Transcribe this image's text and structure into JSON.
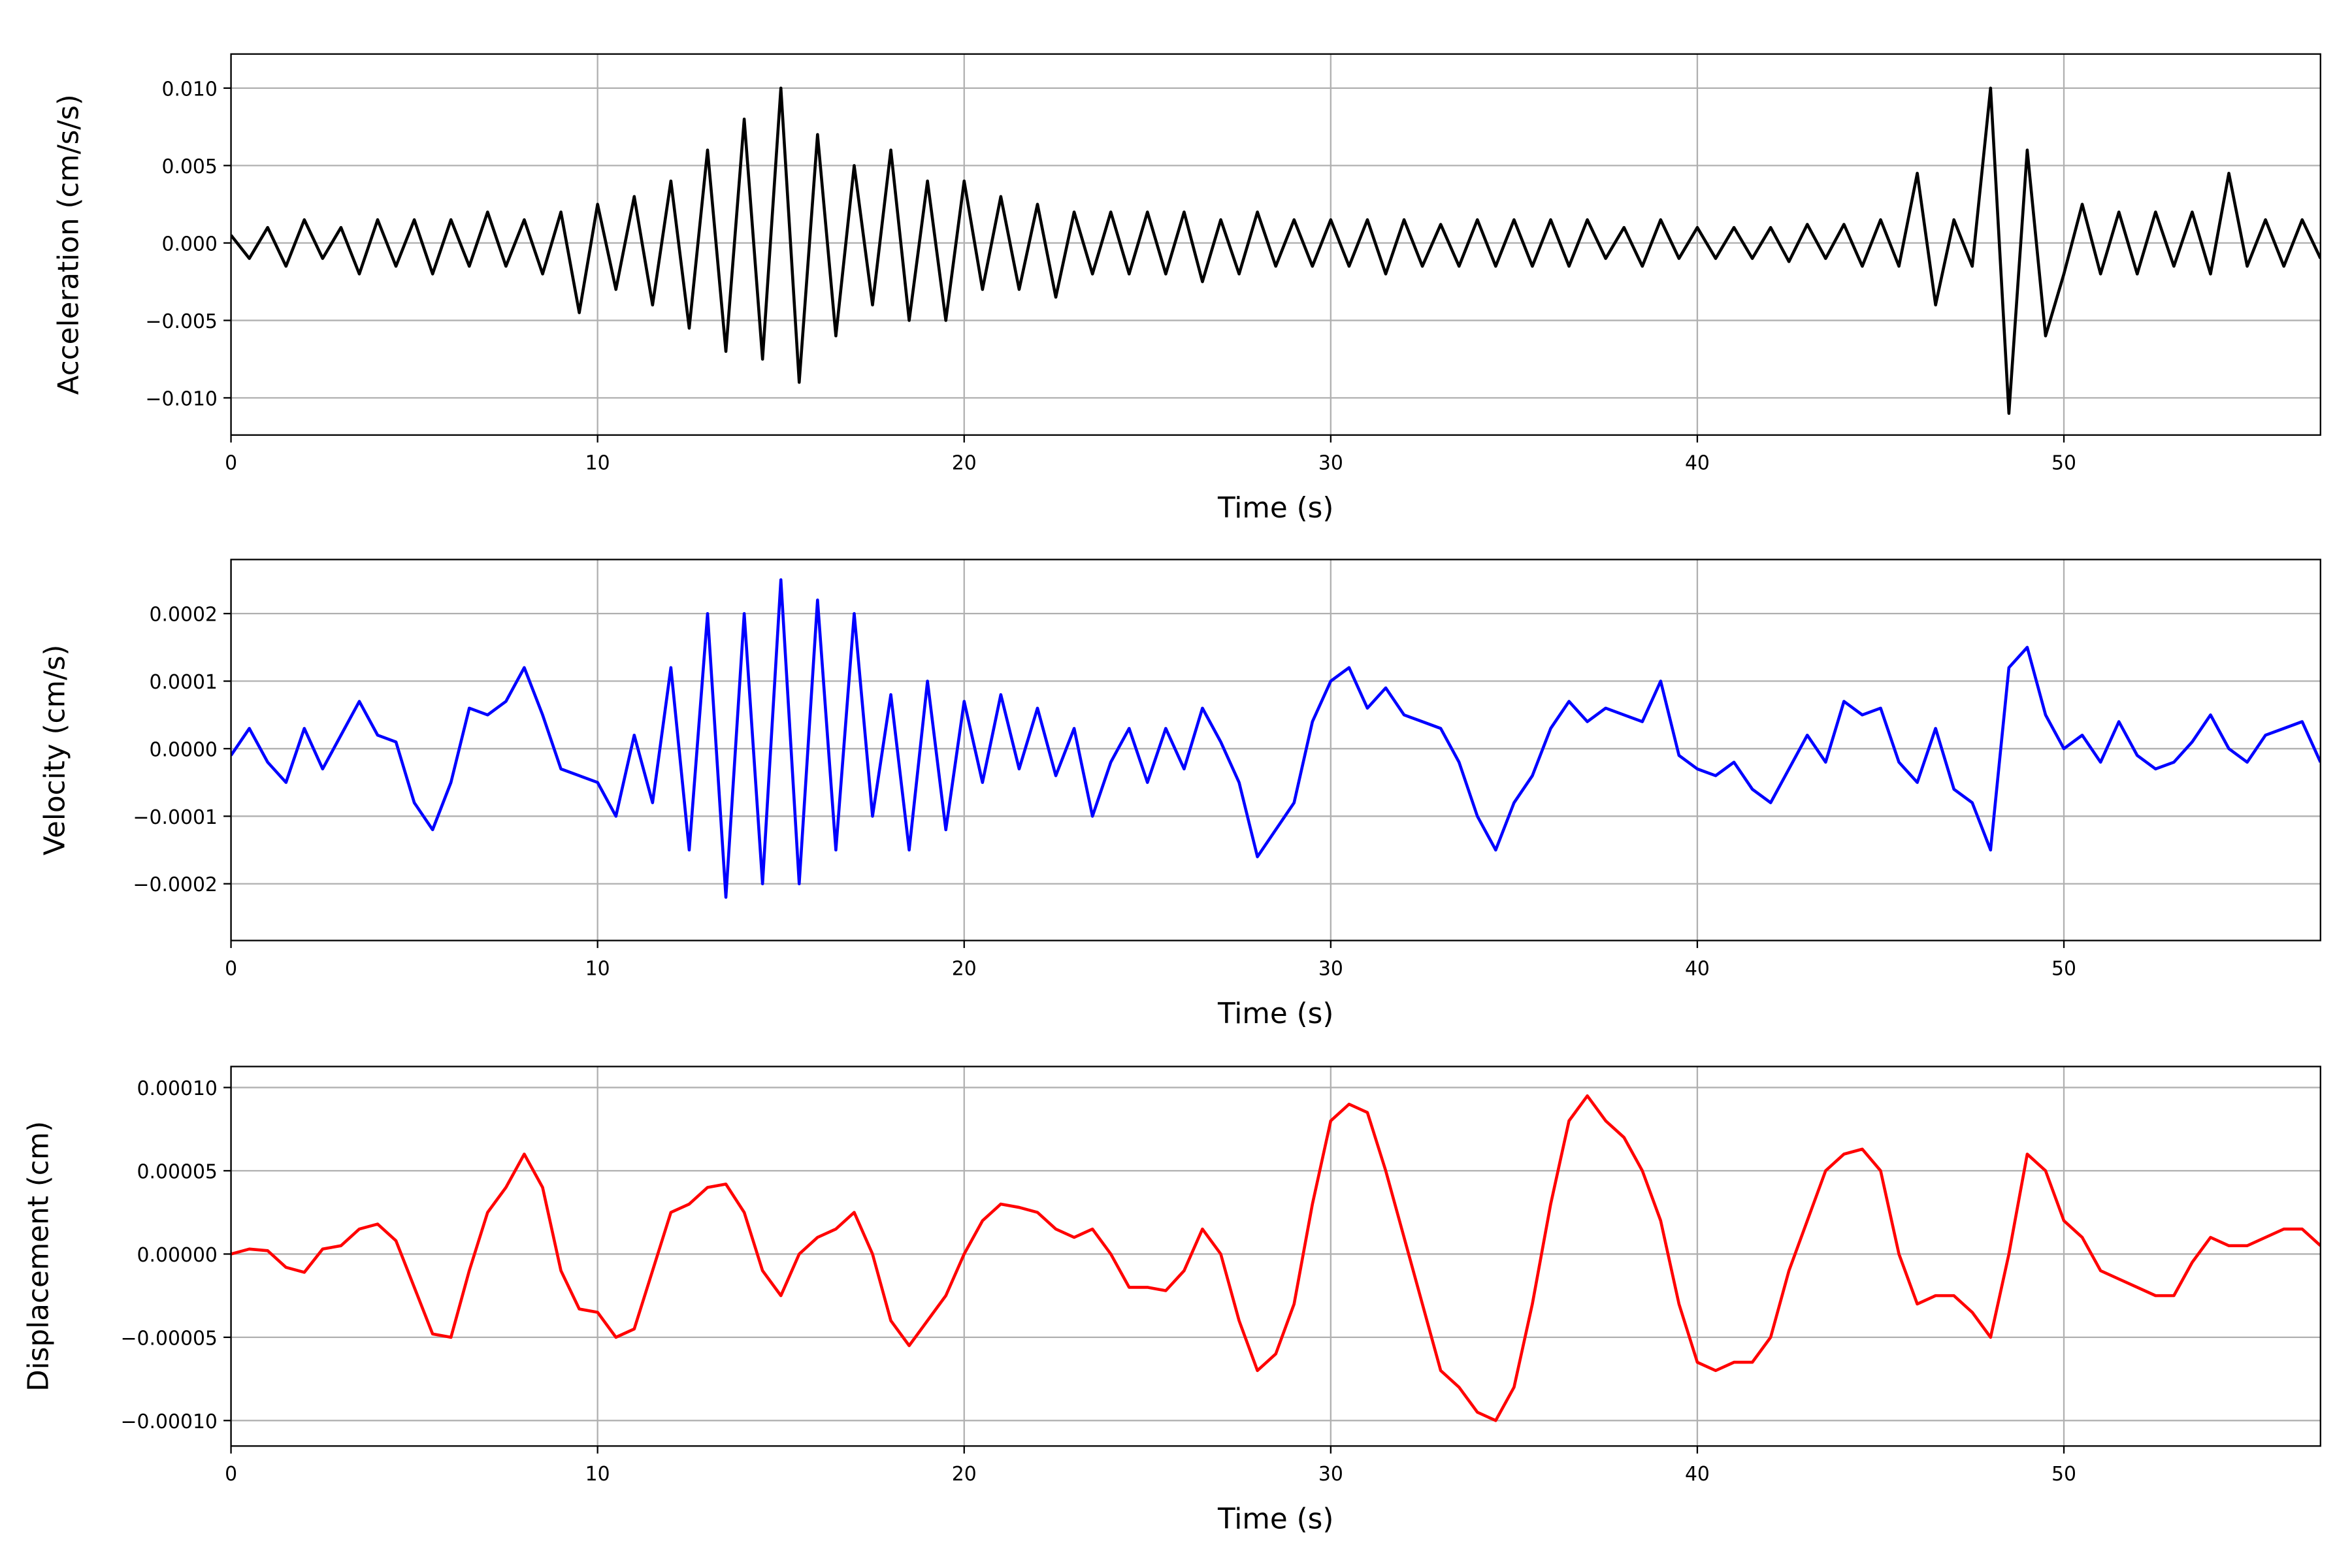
{
  "chart_data": [
    {
      "type": "line",
      "color": "#000000",
      "ylabel": "Acceleration (cm/s/s)",
      "xlabel": "Time (s)",
      "grid": true,
      "xlim": [
        0,
        57
      ],
      "ylim": [
        -0.0124,
        0.0122
      ],
      "xticks": [
        0,
        10,
        20,
        30,
        40,
        50
      ],
      "yticks": [
        {
          "value": -0.01,
          "label": "−0.010"
        },
        {
          "value": -0.005,
          "label": "−0.005"
        },
        {
          "value": 0,
          "label": "0.000"
        },
        {
          "value": 0.005,
          "label": "0.005"
        },
        {
          "value": 0.01,
          "label": "0.010"
        }
      ],
      "x": [
        0,
        0.5,
        1,
        1.5,
        2,
        2.5,
        3,
        3.5,
        4,
        4.5,
        5,
        5.5,
        6,
        6.5,
        7,
        7.5,
        8,
        8.5,
        9,
        9.5,
        10,
        10.5,
        11,
        11.5,
        12,
        12.5,
        13,
        13.5,
        14,
        14.5,
        15,
        15.5,
        16,
        16.5,
        17,
        17.5,
        18,
        18.5,
        19,
        19.5,
        20,
        20.5,
        21,
        21.5,
        22,
        22.5,
        23,
        23.5,
        24,
        24.5,
        25,
        25.5,
        26,
        26.5,
        27,
        27.5,
        28,
        28.5,
        29,
        29.5,
        30,
        30.5,
        31,
        31.5,
        32,
        32.5,
        33,
        33.5,
        34,
        34.5,
        35,
        35.5,
        36,
        36.5,
        37,
        37.5,
        38,
        38.5,
        39,
        39.5,
        40,
        40.5,
        41,
        41.5,
        42,
        42.5,
        43,
        43.5,
        44,
        44.5,
        45,
        45.5,
        46,
        46.5,
        47,
        47.5,
        48,
        48.5,
        49,
        49.5,
        50,
        50.5,
        51,
        51.5,
        52,
        52.5,
        53,
        53.5,
        54,
        54.5,
        55,
        55.5,
        56,
        56.5,
        57
      ],
      "values": [
        0.0005,
        -0.001,
        0.001,
        -0.0015,
        0.0015,
        -0.001,
        0.001,
        -0.002,
        0.0015,
        -0.0015,
        0.0015,
        -0.002,
        0.0015,
        -0.0015,
        0.002,
        -0.0015,
        0.0015,
        -0.002,
        0.002,
        -0.0045,
        0.0025,
        -0.003,
        0.003,
        -0.004,
        0.004,
        -0.0055,
        0.006,
        -0.007,
        0.008,
        -0.0075,
        0.01,
        -0.009,
        0.007,
        -0.006,
        0.005,
        -0.004,
        0.006,
        -0.005,
        0.004,
        -0.005,
        0.004,
        -0.003,
        0.003,
        -0.003,
        0.0025,
        -0.0035,
        0.002,
        -0.002,
        0.002,
        -0.002,
        0.002,
        -0.002,
        0.002,
        -0.0025,
        0.0015,
        -0.002,
        0.002,
        -0.0015,
        0.0015,
        -0.0015,
        0.0015,
        -0.0015,
        0.0015,
        -0.002,
        0.0015,
        -0.0015,
        0.0012,
        -0.0015,
        0.0015,
        -0.0015,
        0.0015,
        -0.0015,
        0.0015,
        -0.0015,
        0.0015,
        -0.001,
        0.001,
        -0.0015,
        0.0015,
        -0.001,
        0.001,
        -0.001,
        0.001,
        -0.001,
        0.001,
        -0.0012,
        0.0012,
        -0.001,
        0.0012,
        -0.0015,
        0.0015,
        -0.0015,
        0.0045,
        -0.004,
        0.0015,
        -0.0015,
        0.01,
        -0.011,
        0.006,
        -0.006,
        -0.002,
        0.0025,
        -0.002,
        0.002,
        -0.002,
        0.002,
        -0.0015,
        0.002,
        -0.002,
        0.0045,
        -0.0015,
        0.0015,
        -0.0015,
        0.0015,
        -0.001
      ]
    },
    {
      "type": "line",
      "color": "#0000ff",
      "ylabel": "Velocity (cm/s)",
      "xlabel": "Time (s)",
      "grid": true,
      "xlim": [
        0,
        57
      ],
      "ylim": [
        -0.000284,
        0.00028
      ],
      "xticks": [
        0,
        10,
        20,
        30,
        40,
        50
      ],
      "yticks": [
        {
          "value": -0.0002,
          "label": "−0.0002"
        },
        {
          "value": -0.0001,
          "label": "−0.0001"
        },
        {
          "value": 0,
          "label": "0.0000"
        },
        {
          "value": 0.0001,
          "label": "0.0001"
        },
        {
          "value": 0.0002,
          "label": "0.0002"
        }
      ],
      "x": [
        0,
        0.5,
        1,
        1.5,
        2,
        2.5,
        3,
        3.5,
        4,
        4.5,
        5,
        5.5,
        6,
        6.5,
        7,
        7.5,
        8,
        8.5,
        9,
        9.5,
        10,
        10.5,
        11,
        11.5,
        12,
        12.5,
        13,
        13.5,
        14,
        14.5,
        15,
        15.5,
        16,
        16.5,
        17,
        17.5,
        18,
        18.5,
        19,
        19.5,
        20,
        20.5,
        21,
        21.5,
        22,
        22.5,
        23,
        23.5,
        24,
        24.5,
        25,
        25.5,
        26,
        26.5,
        27,
        27.5,
        28,
        28.5,
        29,
        29.5,
        30,
        30.5,
        31,
        31.5,
        32,
        32.5,
        33,
        33.5,
        34,
        34.5,
        35,
        35.5,
        36,
        36.5,
        37,
        37.5,
        38,
        38.5,
        39,
        39.5,
        40,
        40.5,
        41,
        41.5,
        42,
        42.5,
        43,
        43.5,
        44,
        44.5,
        45,
        45.5,
        46,
        46.5,
        47,
        47.5,
        48,
        48.5,
        49,
        49.5,
        50,
        50.5,
        51,
        51.5,
        52,
        52.5,
        53,
        53.5,
        54,
        54.5,
        55,
        55.5,
        56,
        56.5,
        57
      ],
      "values": [
        -1e-05,
        3e-05,
        -2e-05,
        -5e-05,
        3e-05,
        -3e-05,
        2e-05,
        7e-05,
        2e-05,
        1e-05,
        -8e-05,
        -0.00012,
        -5e-05,
        6e-05,
        5e-05,
        7e-05,
        0.00012,
        5e-05,
        -3e-05,
        -4e-05,
        -5e-05,
        -0.0001,
        2e-05,
        -8e-05,
        0.00012,
        -0.00015,
        0.0002,
        -0.00022,
        0.0002,
        -0.0002,
        0.00025,
        -0.0002,
        0.00022,
        -0.00015,
        0.0002,
        -0.0001,
        8e-05,
        -0.00015,
        0.0001,
        -0.00012,
        7e-05,
        -5e-05,
        8e-05,
        -3e-05,
        6e-05,
        -4e-05,
        3e-05,
        -0.0001,
        -2e-05,
        3e-05,
        -5e-05,
        3e-05,
        -3e-05,
        6e-05,
        1e-05,
        -5e-05,
        -0.00016,
        -0.00012,
        -8e-05,
        4e-05,
        0.0001,
        0.00012,
        6e-05,
        9e-05,
        5e-05,
        4e-05,
        3e-05,
        -2e-05,
        -0.0001,
        -0.00015,
        -8e-05,
        -4e-05,
        3e-05,
        7e-05,
        4e-05,
        6e-05,
        5e-05,
        4e-05,
        0.0001,
        -1e-05,
        -3e-05,
        -4e-05,
        -2e-05,
        -6e-05,
        -8e-05,
        -3e-05,
        2e-05,
        -2e-05,
        7e-05,
        5e-05,
        6e-05,
        -2e-05,
        -5e-05,
        3e-05,
        -6e-05,
        -8e-05,
        -0.00015,
        0.00012,
        0.00015,
        5e-05,
        0,
        2e-05,
        -2e-05,
        4e-05,
        -1e-05,
        -3e-05,
        -2e-05,
        1e-05,
        5e-05,
        0,
        -2e-05,
        2e-05,
        3e-05,
        4e-05,
        -2e-05
      ]
    },
    {
      "type": "line",
      "color": "#ff0000",
      "ylabel": "Displacement (cm)",
      "xlabel": "Time (s)",
      "grid": true,
      "xlim": [
        0,
        57
      ],
      "ylim": [
        -0.0001153,
        0.0001126
      ],
      "xticks": [
        0,
        10,
        20,
        30,
        40,
        50
      ],
      "yticks": [
        {
          "value": -0.0001,
          "label": "−0.00010"
        },
        {
          "value": -5e-05,
          "label": "−0.00005"
        },
        {
          "value": 0,
          "label": "0.00000"
        },
        {
          "value": 5e-05,
          "label": "0.00005"
        },
        {
          "value": 0.0001,
          "label": "0.00010"
        }
      ],
      "x": [
        0,
        0.5,
        1,
        1.5,
        2,
        2.5,
        3,
        3.5,
        4,
        4.5,
        5,
        5.5,
        6,
        6.5,
        7,
        7.5,
        8,
        8.5,
        9,
        9.5,
        10,
        10.5,
        11,
        11.5,
        12,
        12.5,
        13,
        13.5,
        14,
        14.5,
        15,
        15.5,
        16,
        16.5,
        17,
        17.5,
        18,
        18.5,
        19,
        19.5,
        20,
        20.5,
        21,
        21.5,
        22,
        22.5,
        23,
        23.5,
        24,
        24.5,
        25,
        25.5,
        26,
        26.5,
        27,
        27.5,
        28,
        28.5,
        29,
        29.5,
        30,
        30.5,
        31,
        31.5,
        32,
        32.5,
        33,
        33.5,
        34,
        34.5,
        35,
        35.5,
        36,
        36.5,
        37,
        37.5,
        38,
        38.5,
        39,
        39.5,
        40,
        40.5,
        41,
        41.5,
        42,
        42.5,
        43,
        43.5,
        44,
        44.5,
        45,
        45.5,
        46,
        46.5,
        47,
        47.5,
        48,
        48.5,
        49,
        49.5,
        50,
        50.5,
        51,
        51.5,
        52,
        52.5,
        53,
        53.5,
        54,
        54.5,
        55,
        55.5,
        56,
        56.5,
        57
      ],
      "values": [
        0,
        3e-06,
        2e-06,
        -8e-06,
        -1.1e-05,
        3e-06,
        5e-06,
        1.5e-05,
        1.8e-05,
        8e-06,
        -2e-05,
        -4.8e-05,
        -5e-05,
        -1e-05,
        2.5e-05,
        4e-05,
        6e-05,
        4e-05,
        -1e-05,
        -3.3e-05,
        -3.5e-05,
        -5e-05,
        -4.5e-05,
        -1e-05,
        2.5e-05,
        3e-05,
        4e-05,
        4.2e-05,
        2.5e-05,
        -1e-05,
        -2.5e-05,
        0,
        1e-05,
        1.5e-05,
        2.5e-05,
        0,
        -4e-05,
        -5.5e-05,
        -4e-05,
        -2.5e-05,
        0,
        2e-05,
        3e-05,
        2.8e-05,
        2.5e-05,
        1.5e-05,
        1e-05,
        1.5e-05,
        0,
        -2e-05,
        -2e-05,
        -2.2e-05,
        -1e-05,
        1.5e-05,
        0,
        -4e-05,
        -7e-05,
        -6e-05,
        -3e-05,
        3e-05,
        8e-05,
        9e-05,
        8.5e-05,
        5e-05,
        1e-05,
        -3e-05,
        -7e-05,
        -8e-05,
        -9.5e-05,
        -0.0001,
        -8e-05,
        -3e-05,
        3e-05,
        8e-05,
        9.5e-05,
        8e-05,
        7e-05,
        5e-05,
        2e-05,
        -3e-05,
        -6.5e-05,
        -7e-05,
        -6.5e-05,
        -6.5e-05,
        -5e-05,
        -1e-05,
        2e-05,
        5e-05,
        6e-05,
        6.3e-05,
        5e-05,
        0,
        -3e-05,
        -2.5e-05,
        -2.5e-05,
        -3.5e-05,
        -5e-05,
        0,
        6e-05,
        5e-05,
        2e-05,
        1e-05,
        -1e-05,
        -1.5e-05,
        -2e-05,
        -2.5e-05,
        -2.5e-05,
        -5e-06,
        1e-05,
        5e-06,
        5e-06,
        1e-05,
        1.5e-05,
        1.5e-05,
        5e-06
      ]
    }
  ]
}
